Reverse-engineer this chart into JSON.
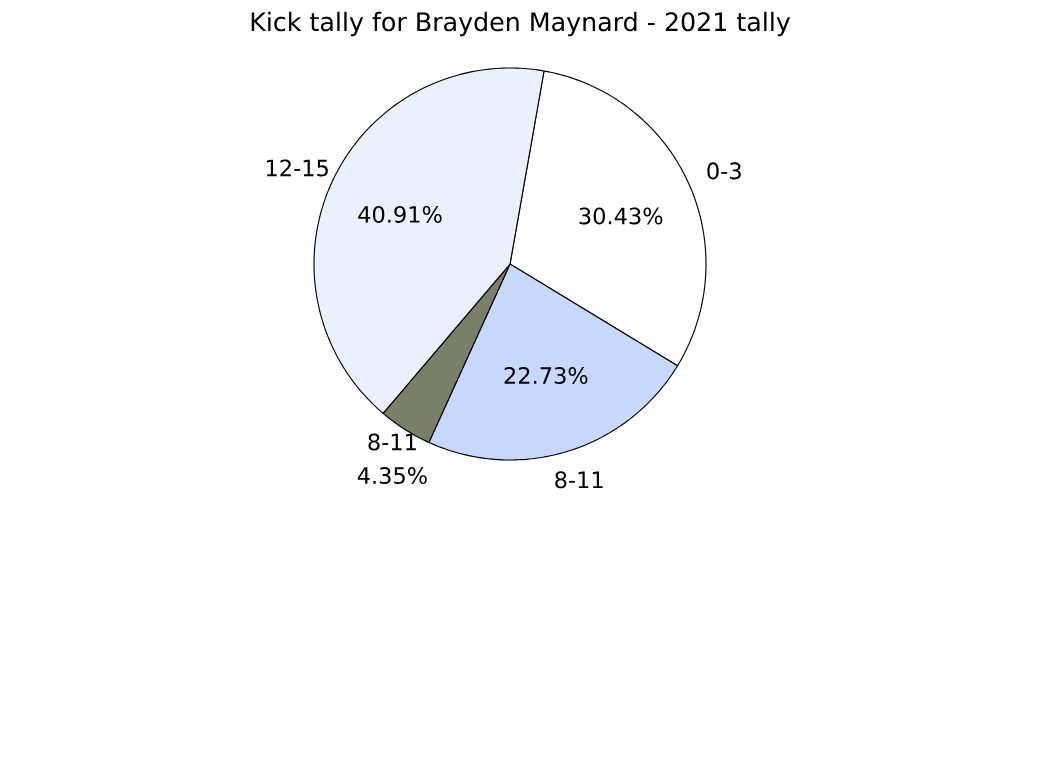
{
  "chart_data": {
    "type": "pie",
    "title": "Kick tally for Brayden Maynard - 2021 tally",
    "categories": [
      "0-3",
      "8-11",
      "8-11",
      "12-15"
    ],
    "values": [
      30.43,
      22.73,
      4.35,
      40.91
    ],
    "value_labels": [
      "30.43%",
      "22.73%",
      "4.35%",
      "40.91%"
    ],
    "colors": [
      "#ffffff",
      "#c6d9fd",
      "#7a8068",
      "#eaf0fe"
    ],
    "legend": false
  }
}
